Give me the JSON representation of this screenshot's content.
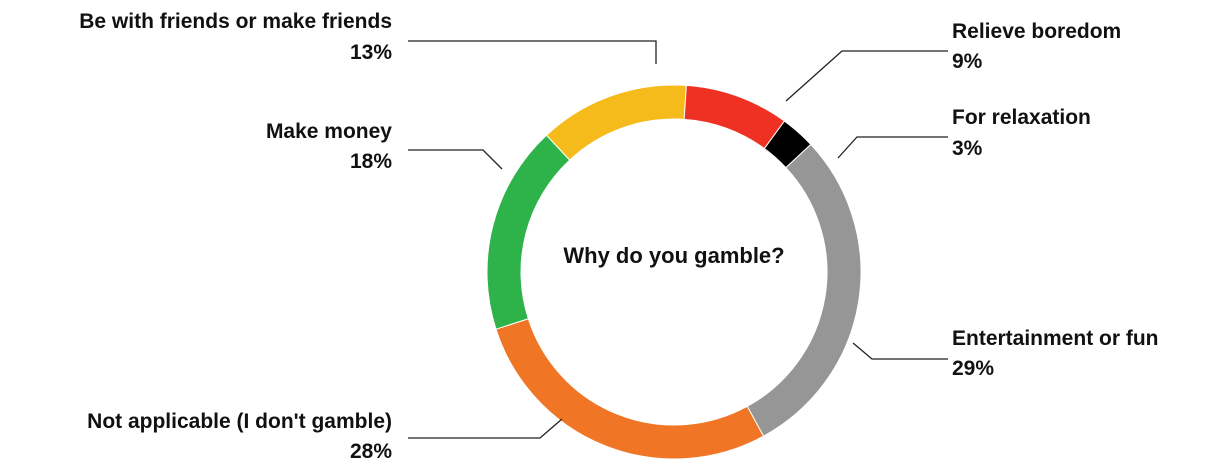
{
  "chart_data": {
    "type": "pie",
    "donut": true,
    "title": "Why do you gamble?",
    "slices": [
      {
        "label": "Be with friends or make friends",
        "value": 13,
        "value_label": "13%",
        "color": "#f5bb1a"
      },
      {
        "label": "Relieve boredom",
        "value": 9,
        "value_label": "9%",
        "color": "#ef3124"
      },
      {
        "label": "For relaxation",
        "value": 3,
        "value_label": "3%",
        "color": "#000000"
      },
      {
        "label": "Entertainment or fun",
        "value": 29,
        "value_label": "29%",
        "color": "#969696"
      },
      {
        "label": "Not applicable (I don't gamble)",
        "value": 28,
        "value_label": "28%",
        "color": "#f07525"
      },
      {
        "label": "Make money",
        "value": 18,
        "value_label": "18%",
        "color": "#2db34a"
      }
    ]
  }
}
